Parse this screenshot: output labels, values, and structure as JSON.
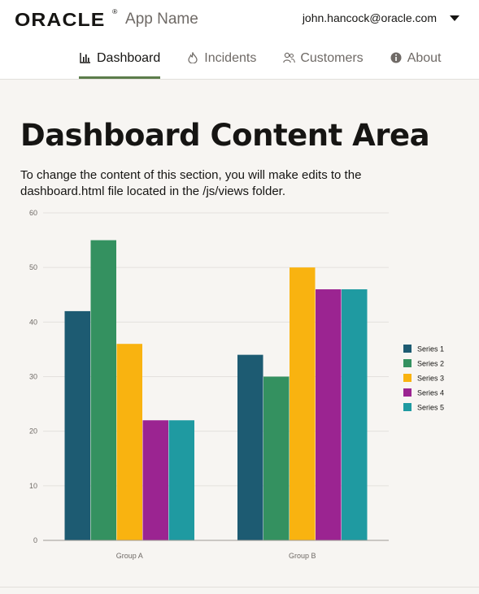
{
  "header": {
    "logo": "ORACLE",
    "logo_mark": "®",
    "app_name": "App Name",
    "user_email": "john.hancock@oracle.com"
  },
  "nav": {
    "tabs": [
      {
        "label": "Dashboard",
        "icon": "chart-icon",
        "active": true
      },
      {
        "label": "Incidents",
        "icon": "fire-icon",
        "active": false
      },
      {
        "label": "Customers",
        "icon": "people-icon",
        "active": false
      },
      {
        "label": "About",
        "icon": "info-icon",
        "active": false
      }
    ]
  },
  "main": {
    "title": "Dashboard Content Area",
    "description": "To change the content of this section, you will make edits to the dashboard.html file located in the /js/views folder."
  },
  "colors": {
    "accent": "#5c7d4b",
    "series": [
      "#1d5b72",
      "#349160",
      "#f9b310",
      "#9b2491",
      "#1f9aa1"
    ]
  },
  "chart_data": {
    "type": "bar",
    "categories": [
      "Group A",
      "Group B"
    ],
    "series": [
      {
        "name": "Series 1",
        "values": [
          42,
          34
        ]
      },
      {
        "name": "Series 2",
        "values": [
          55,
          30
        ]
      },
      {
        "name": "Series 3",
        "values": [
          36,
          50
        ]
      },
      {
        "name": "Series 4",
        "values": [
          22,
          46
        ]
      },
      {
        "name": "Series 5",
        "values": [
          22,
          46
        ]
      }
    ],
    "ylim": [
      0,
      60
    ],
    "yticks": [
      0,
      10,
      20,
      30,
      40,
      50,
      60
    ],
    "grid": true,
    "legend": "right"
  }
}
